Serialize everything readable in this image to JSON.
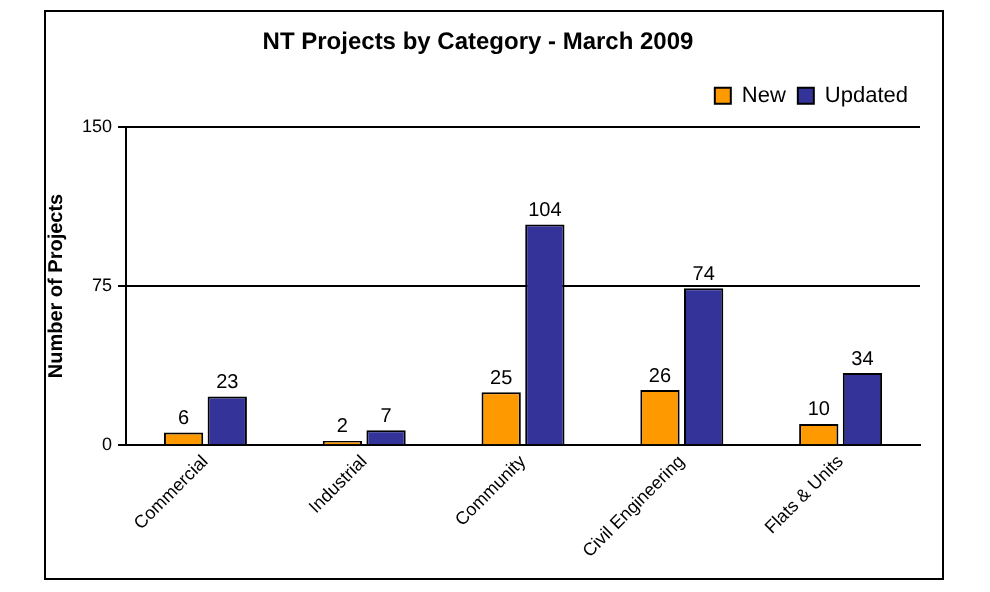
{
  "chart_data": {
    "type": "bar",
    "title": "NT Projects by Category - March 2009",
    "ylabel": "Number of Projects",
    "categories": [
      "Commercial",
      "Industrial",
      "Community",
      "Civil Engineering",
      "Flats & Units"
    ],
    "series": [
      {
        "name": "New",
        "color": "#ff9900",
        "values": [
          6,
          2,
          25,
          26,
          10
        ]
      },
      {
        "name": "Updated",
        "color": "#333399",
        "values": [
          23,
          7,
          104,
          74,
          34
        ]
      }
    ],
    "ylim": [
      0,
      150
    ],
    "yticks": [
      0,
      75,
      150
    ],
    "grid": "y",
    "legend": "top right",
    "data_labels": true
  }
}
